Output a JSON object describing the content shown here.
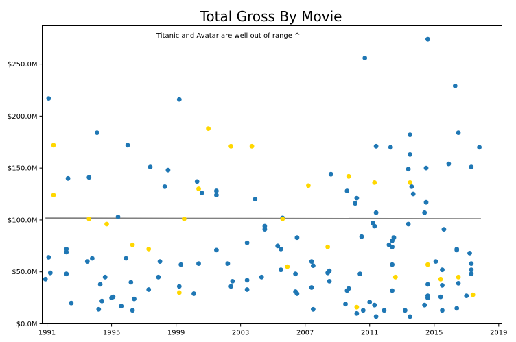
{
  "chart_data": {
    "type": "scatter",
    "title": "Total Gross By Movie",
    "annotation": "Titanic and Avatar are well out of range ^",
    "xlabel": "",
    "ylabel": "",
    "xlim": [
      1990.7,
      2019.2
    ],
    "ylim": [
      0,
      287
    ],
    "x_ticks": [
      1991,
      1995,
      1999,
      2003,
      2007,
      2011,
      2015,
      2019
    ],
    "x_tick_labels": [
      "1991",
      "1995",
      "1999",
      "2003",
      "2007",
      "2011",
      "2015",
      "2019"
    ],
    "y_ticks": [
      0,
      50,
      100,
      150,
      200,
      250
    ],
    "y_tick_labels": [
      "$0.0M",
      "$50.0M",
      "$100.0M",
      "$150.0M",
      "$200.0M",
      "$250.0M"
    ],
    "grid": false,
    "colors": {
      "blue": "#1f77b4",
      "gold": "#ffd700",
      "trend": "#808080"
    },
    "trend_line": {
      "x": [
        1990.9,
        2017.9
      ],
      "y": [
        101.8,
        101.2
      ]
    },
    "series": [
      {
        "color_key": "blue",
        "points": [
          [
            1990.9,
            43
          ],
          [
            1991.1,
            217
          ],
          [
            1991.1,
            64
          ],
          [
            1991.2,
            49
          ],
          [
            1992.2,
            72
          ],
          [
            1992.2,
            69
          ],
          [
            1992.2,
            48
          ],
          [
            1992.3,
            140
          ],
          [
            1992.5,
            20
          ],
          [
            1993.5,
            60
          ],
          [
            1993.6,
            141
          ],
          [
            1993.8,
            63
          ],
          [
            1994.1,
            184
          ],
          [
            1994.2,
            14
          ],
          [
            1994.3,
            38
          ],
          [
            1994.4,
            22
          ],
          [
            1994.6,
            45
          ],
          [
            1995.0,
            25
          ],
          [
            1995.1,
            26
          ],
          [
            1995.4,
            103
          ],
          [
            1995.6,
            17
          ],
          [
            1995.9,
            63
          ],
          [
            1996.0,
            172
          ],
          [
            1996.2,
            40
          ],
          [
            1996.3,
            13
          ],
          [
            1996.4,
            24
          ],
          [
            1997.3,
            33
          ],
          [
            1997.4,
            151
          ],
          [
            1997.9,
            45
          ],
          [
            1998.0,
            60
          ],
          [
            1998.3,
            132
          ],
          [
            1998.5,
            148
          ],
          [
            1999.2,
            216
          ],
          [
            1999.2,
            36
          ],
          [
            1999.3,
            57
          ],
          [
            2000.1,
            29
          ],
          [
            2000.3,
            137
          ],
          [
            2000.4,
            58
          ],
          [
            2000.6,
            126
          ],
          [
            2001.5,
            128
          ],
          [
            2001.5,
            124
          ],
          [
            2001.5,
            71
          ],
          [
            2002.2,
            58
          ],
          [
            2002.4,
            36
          ],
          [
            2002.5,
            41
          ],
          [
            2003.4,
            78
          ],
          [
            2003.4,
            33
          ],
          [
            2003.4,
            42
          ],
          [
            2003.9,
            120
          ],
          [
            2004.3,
            45
          ],
          [
            2004.5,
            94
          ],
          [
            2004.5,
            91
          ],
          [
            2005.3,
            75
          ],
          [
            2005.5,
            52
          ],
          [
            2005.5,
            72
          ],
          [
            2005.6,
            102
          ],
          [
            2006.4,
            31
          ],
          [
            2006.4,
            48
          ],
          [
            2006.5,
            29
          ],
          [
            2006.5,
            83
          ],
          [
            2007.4,
            60
          ],
          [
            2007.4,
            35
          ],
          [
            2007.5,
            14
          ],
          [
            2007.5,
            56
          ],
          [
            2008.4,
            49
          ],
          [
            2008.5,
            51
          ],
          [
            2008.5,
            41
          ],
          [
            2008.6,
            144
          ],
          [
            2009.5,
            19
          ],
          [
            2009.6,
            128
          ],
          [
            2009.6,
            32
          ],
          [
            2009.7,
            34
          ],
          [
            2010.1,
            116
          ],
          [
            2010.2,
            121
          ],
          [
            2010.2,
            10
          ],
          [
            2010.4,
            48
          ],
          [
            2010.5,
            84
          ],
          [
            2010.6,
            13
          ],
          [
            2010.7,
            256
          ],
          [
            2011.0,
            21
          ],
          [
            2011.2,
            97
          ],
          [
            2011.3,
            94
          ],
          [
            2011.3,
            18
          ],
          [
            2011.4,
            171
          ],
          [
            2011.4,
            107
          ],
          [
            2011.4,
            7
          ],
          [
            2011.9,
            13
          ],
          [
            2012.2,
            76
          ],
          [
            2012.3,
            170
          ],
          [
            2012.4,
            57
          ],
          [
            2012.4,
            32
          ],
          [
            2012.4,
            74
          ],
          [
            2012.4,
            80
          ],
          [
            2012.5,
            83
          ],
          [
            2013.2,
            13
          ],
          [
            2013.4,
            96
          ],
          [
            2013.4,
            149
          ],
          [
            2013.5,
            182
          ],
          [
            2013.5,
            163
          ],
          [
            2013.5,
            7
          ],
          [
            2013.6,
            132
          ],
          [
            2013.7,
            125
          ],
          [
            2014.4,
            107
          ],
          [
            2014.4,
            18
          ],
          [
            2014.5,
            117
          ],
          [
            2014.5,
            150
          ],
          [
            2014.6,
            25
          ],
          [
            2014.6,
            27
          ],
          [
            2014.6,
            38
          ],
          [
            2014.6,
            274
          ],
          [
            2015.1,
            60
          ],
          [
            2015.4,
            26
          ],
          [
            2015.5,
            13
          ],
          [
            2015.5,
            52
          ],
          [
            2015.5,
            37
          ],
          [
            2015.6,
            91
          ],
          [
            2015.9,
            154
          ],
          [
            2016.3,
            229
          ],
          [
            2016.4,
            72
          ],
          [
            2016.4,
            71
          ],
          [
            2016.4,
            15
          ],
          [
            2016.5,
            184
          ],
          [
            2016.5,
            39
          ],
          [
            2017.0,
            27
          ],
          [
            2017.2,
            68
          ],
          [
            2017.3,
            58
          ],
          [
            2017.3,
            52
          ],
          [
            2017.3,
            48
          ],
          [
            2017.3,
            151
          ],
          [
            2017.8,
            170
          ]
        ]
      },
      {
        "color_key": "gold",
        "points": [
          [
            1991.4,
            172
          ],
          [
            1991.4,
            124
          ],
          [
            1993.6,
            101
          ],
          [
            1994.7,
            96
          ],
          [
            1996.3,
            76
          ],
          [
            1997.3,
            72
          ],
          [
            1999.2,
            30
          ],
          [
            1999.5,
            101
          ],
          [
            2000.4,
            130
          ],
          [
            2001.0,
            188
          ],
          [
            2002.4,
            171
          ],
          [
            2003.7,
            171
          ],
          [
            2005.6,
            101
          ],
          [
            2005.9,
            55
          ],
          [
            2007.2,
            133
          ],
          [
            2008.4,
            74
          ],
          [
            2009.7,
            142
          ],
          [
            2010.2,
            16
          ],
          [
            2011.3,
            136
          ],
          [
            2012.6,
            45
          ],
          [
            2013.5,
            136
          ],
          [
            2014.6,
            57
          ],
          [
            2015.4,
            43
          ],
          [
            2016.5,
            45
          ],
          [
            2017.4,
            28
          ]
        ]
      }
    ]
  }
}
